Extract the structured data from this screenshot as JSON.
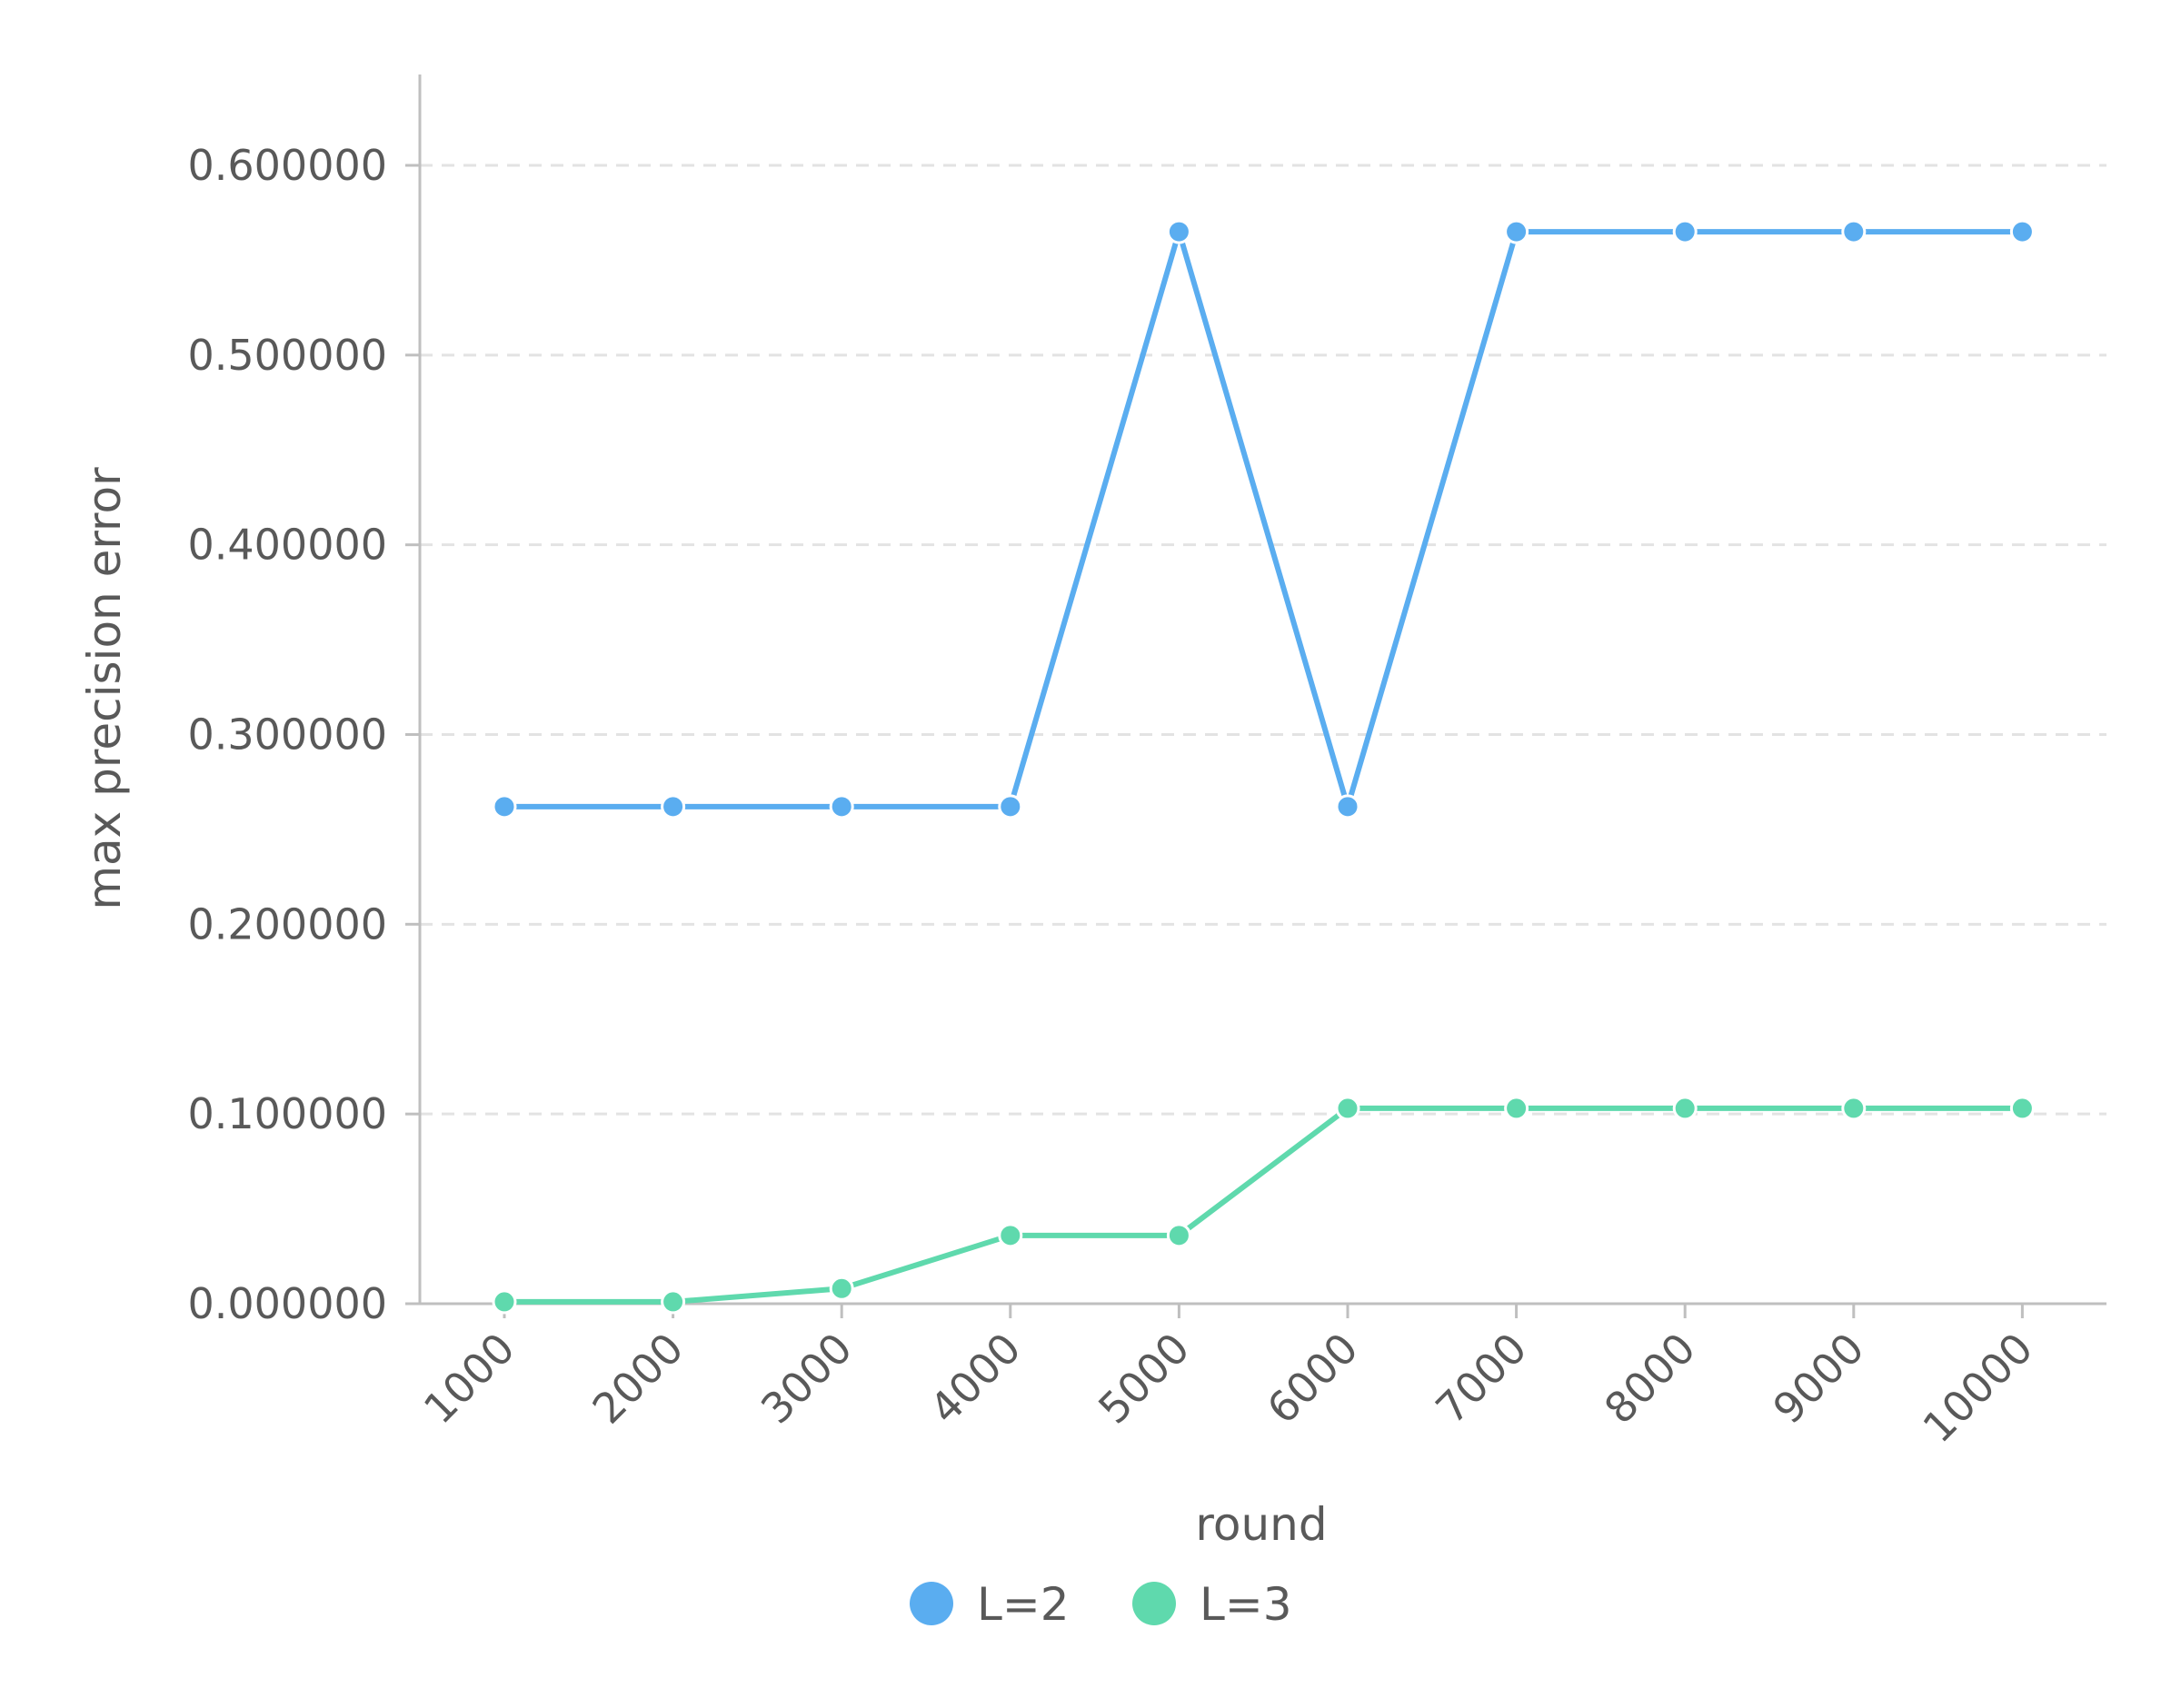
{
  "chart_data": {
    "type": "line",
    "title": "",
    "xlabel": "round",
    "ylabel": "max precision error",
    "x": [
      "1000",
      "2000",
      "3000",
      "4000",
      "5000",
      "6000",
      "7000",
      "8000",
      "9000",
      "10000"
    ],
    "ylim": [
      0,
      0.6
    ],
    "yticks": [
      "0.000000",
      "0.100000",
      "0.200000",
      "0.300000",
      "0.400000",
      "0.500000",
      "0.600000"
    ],
    "grid": "horizontal-dashed",
    "legend_position": "bottom-center",
    "series": [
      {
        "name": "L=2",
        "color": "#5aadf0",
        "values": [
          0.262,
          0.262,
          0.262,
          0.262,
          0.565,
          0.262,
          0.565,
          0.565,
          0.565,
          0.565
        ]
      },
      {
        "name": "L=3",
        "color": "#5fd9ad",
        "values": [
          0.001,
          0.001,
          0.008,
          0.036,
          0.036,
          0.103,
          0.103,
          0.103,
          0.103,
          0.103
        ]
      }
    ]
  }
}
